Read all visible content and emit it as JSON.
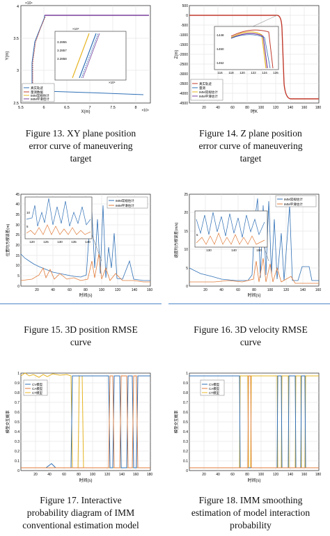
{
  "colors": {
    "blue": "#2f6fb5",
    "orange": "#e07b39",
    "yellow": "#e6b422",
    "purple": "#7a3f9b",
    "red": "#c0392b",
    "gray": "#999999",
    "rule": "#4a86c8"
  },
  "figures": [
    {
      "id": "fig13",
      "caption_lines": [
        "Figure 13. XY plane position",
        "error curve of maneuvering",
        "target"
      ],
      "chart_data": {
        "type": "line",
        "y_exponent": "×10⁴",
        "x_exponent": "×10⁴",
        "xlabel": "X(m)",
        "ylabel": "Y(m)",
        "xlim": [
          5.5,
          8.3
        ],
        "ylim": [
          2.5,
          4.0
        ],
        "xticks": [
          "5.5",
          "6",
          "6.5",
          "7",
          "7.5",
          "8"
        ],
        "yticks": [
          "2.5",
          "3",
          "3.5",
          "4"
        ],
        "legend": [
          "真实轨迹",
          "量测数据",
          "IMM常规估计",
          "IMM平滑估计"
        ],
        "inset_ticks": [
          "3.2855",
          "3.2857",
          "3.2858"
        ],
        "inset_top_label": "×10⁴",
        "inset_bottom_label": "×10⁴",
        "series": [
          {
            "name": "真实轨迹",
            "x": [
              5.95,
              5.95,
              6.05,
              8.2
            ],
            "y": [
              3.62,
              2.72,
              2.64,
              2.64
            ]
          },
          {
            "name": "IMM常规估计",
            "x": [
              5.95,
              8.3
            ],
            "y": [
              3.62,
              3.62
            ]
          }
        ]
      }
    },
    {
      "id": "fig14",
      "caption_lines": [
        "Figure 14. Z plane position",
        "error curve of maneuvering",
        "target"
      ],
      "chart_data": {
        "type": "line",
        "xlabel": "时K",
        "ylabel": "Z(m)",
        "xlim": [
          0,
          180
        ],
        "ylim": [
          -4500,
          500
        ],
        "xticks": [
          "20",
          "40",
          "60",
          "80",
          "100",
          "120",
          "140",
          "160",
          "180"
        ],
        "yticks": [
          "500",
          "0",
          "-500",
          "-1000",
          "-1500",
          "-2000",
          "-2500",
          "-3000",
          "-3500",
          "-4000",
          "-4500"
        ],
        "legend": [
          "真实轨迹",
          "量测",
          "IMM常规估计",
          "IMM平滑估计"
        ],
        "inset_yticks": [
          "-1448",
          "-1450",
          "-1452"
        ],
        "inset_xticks": [
          "116",
          "118",
          "120",
          "122",
          "124",
          "126"
        ],
        "series": [
          {
            "name": "真实轨迹",
            "x": [
              0,
              120,
              140,
              146,
              150,
              180
            ],
            "y": [
              0,
              0,
              0,
              -2500,
              -4400,
              -4400
            ]
          }
        ]
      }
    },
    {
      "id": "fig15",
      "caption_lines": [
        "Figure 15. 3D position RMSE",
        "curve"
      ],
      "chart_data": {
        "type": "line",
        "xlabel": "时间(s)",
        "ylabel": "位置均方根误差(m)",
        "xlim": [
          0,
          160
        ],
        "ylim": [
          0,
          45
        ],
        "xticks": [
          "20",
          "40",
          "60",
          "80",
          "100",
          "120",
          "140",
          "160"
        ],
        "yticks": [
          "45",
          "40",
          "35",
          "30",
          "25",
          "20",
          "15",
          "10",
          "5",
          "0"
        ],
        "legend": [
          "IMM常规估计",
          "IMM平滑估计"
        ],
        "inset_xticks": [
          "120",
          "125",
          "130",
          "135",
          "140"
        ],
        "inset_yticks": [
          "10",
          "5"
        ]
      }
    },
    {
      "id": "fig16",
      "caption_lines": [
        "Figure 16. 3D velocity RMSE",
        "curve"
      ],
      "chart_data": {
        "type": "line",
        "xlabel": "时间(s)",
        "ylabel": "速度均方根误差(m/s)",
        "xlim": [
          0,
          160
        ],
        "ylim": [
          0,
          25
        ],
        "xticks": [
          "20",
          "40",
          "60",
          "80",
          "100",
          "120",
          "140",
          "160"
        ],
        "yticks": [
          "25",
          "20",
          "15",
          "10",
          "5",
          "0"
        ],
        "legend": [
          "IMM常规估计",
          "IMM平滑估计"
        ],
        "inset_xticks": [
          "130",
          "140",
          "150"
        ],
        "inset_yticks": [
          "5"
        ]
      }
    },
    {
      "id": "fig17",
      "caption_lines": [
        "Figure 17. Interactive",
        "probability diagram of IMM",
        "conventional estimation model"
      ],
      "chart_data": {
        "type": "line",
        "xlabel": "时间(s)",
        "ylabel": "模型交互概率",
        "xlim": [
          0,
          180
        ],
        "ylim": [
          0,
          1
        ],
        "xticks": [
          "20",
          "40",
          "60",
          "80",
          "100",
          "120",
          "140",
          "160",
          "180"
        ],
        "yticks": [
          "1",
          "0.9",
          "0.8",
          "0.7",
          "0.6",
          "0.5",
          "0.4",
          "0.3",
          "0.2",
          "0.1",
          "0"
        ],
        "legend": [
          "CV模型",
          "CA模型",
          "CT模型"
        ]
      }
    },
    {
      "id": "fig18",
      "caption_lines": [
        "Figure 18. IMM smoothing",
        "estimation of model interaction",
        "probability"
      ],
      "chart_data": {
        "type": "line",
        "xlabel": "时间(s)",
        "ylabel": "模型交互概率",
        "xlim": [
          0,
          180
        ],
        "ylim": [
          0,
          1
        ],
        "xticks": [
          "20",
          "40",
          "60",
          "80",
          "100",
          "120",
          "140",
          "160",
          "180"
        ],
        "yticks": [
          "1",
          "0.9",
          "0.8",
          "0.7",
          "0.6",
          "0.5",
          "0.4",
          "0.3",
          "0.2",
          "0.1",
          "0"
        ],
        "legend": [
          "CV模型",
          "CA模型",
          "CT模型"
        ]
      }
    }
  ]
}
